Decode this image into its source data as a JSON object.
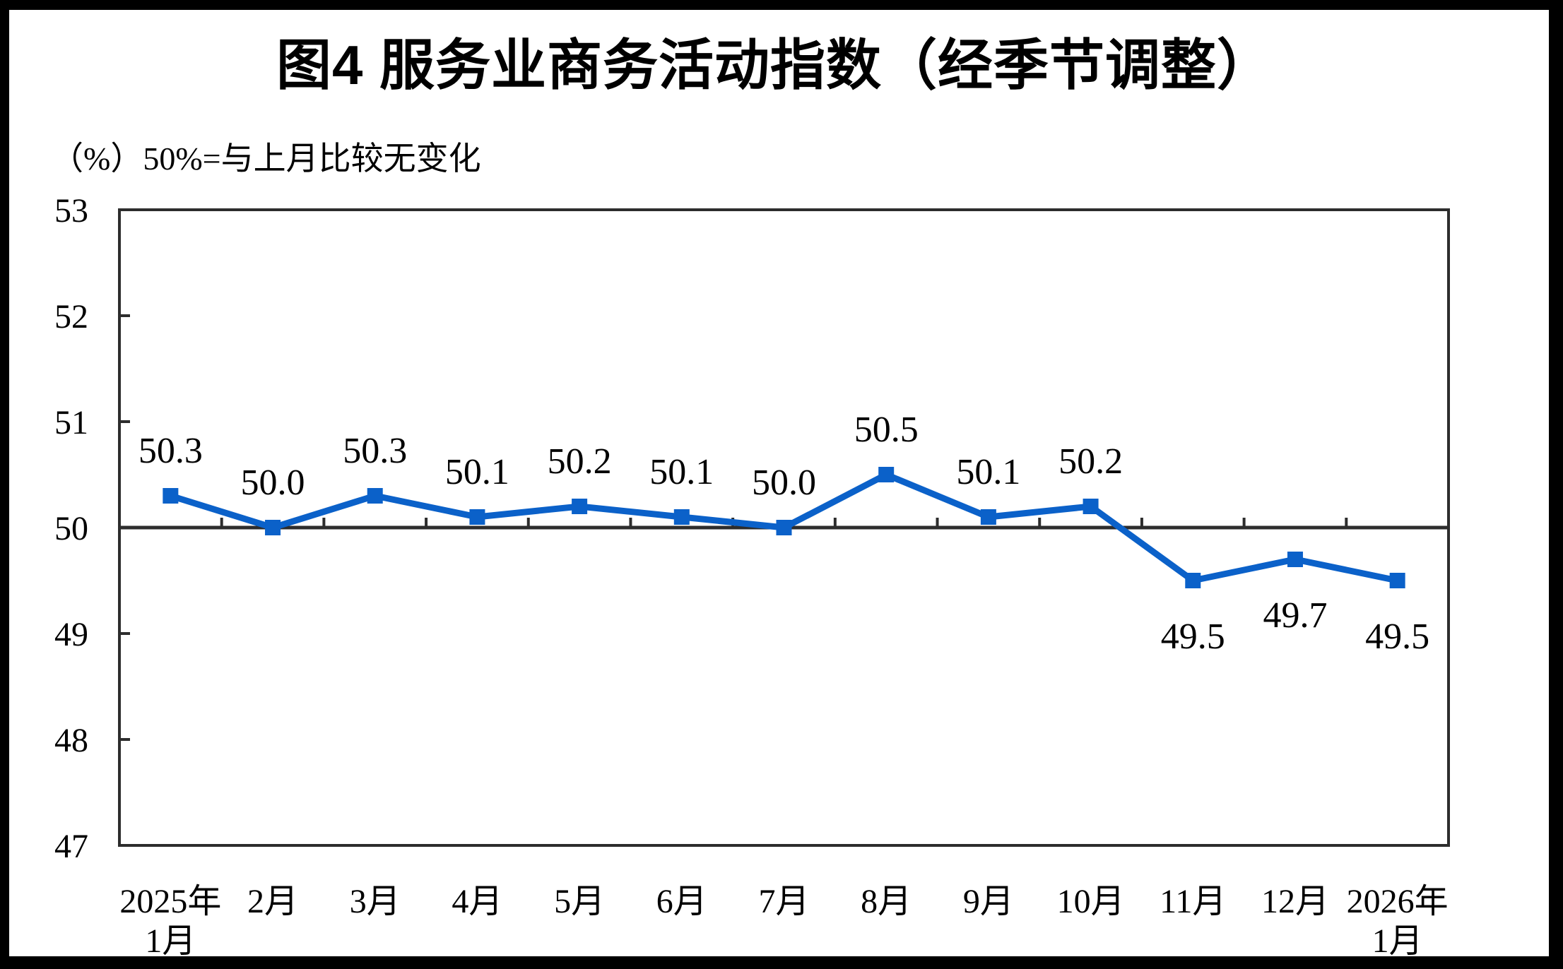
{
  "title": "图4  服务业商务活动指数（经季节调整）",
  "subtitle": "（%）50%=与上月比较无变化",
  "chart_data": {
    "type": "line",
    "title": "图4  服务业商务活动指数（经季节调整）",
    "unit_note": "（%）50%=与上月比较无变化",
    "categories": [
      "2025年\n1月",
      "2月",
      "3月",
      "4月",
      "5月",
      "6月",
      "7月",
      "8月",
      "9月",
      "10月",
      "11月",
      "12月",
      "2026年\n1月"
    ],
    "series": [
      {
        "name": "服务业商务活动指数",
        "values": [
          50.3,
          50.0,
          50.3,
          50.1,
          50.2,
          50.1,
          50.0,
          50.5,
          50.1,
          50.2,
          49.5,
          49.7,
          49.5
        ],
        "data_labels": [
          "50.3",
          "50.0",
          "50.3",
          "50.1",
          "50.2",
          "50.1",
          "50.0",
          "50.5",
          "50.1",
          "50.2",
          "49.5",
          "49.7",
          "49.5"
        ]
      }
    ],
    "xlabel": "",
    "ylabel": "",
    "ylim": [
      47,
      53
    ],
    "yticks": [
      47,
      48,
      49,
      50,
      51,
      52,
      53
    ],
    "baseline_value": 50,
    "grid": false,
    "legend": "none",
    "marker": "square",
    "colors": {
      "series": "#0B61C9",
      "axis": "#2D2D2D",
      "text": "#000000",
      "background": "#ffffff",
      "frame": "#000000"
    }
  }
}
